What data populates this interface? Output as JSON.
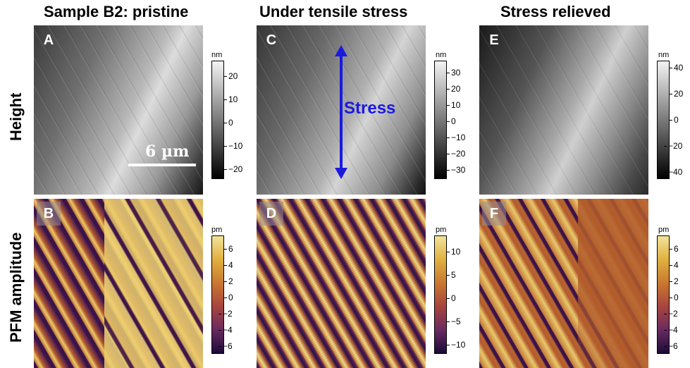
{
  "columns": [
    "Sample B2: pristine",
    "Under tensile stress",
    "Stress relieved"
  ],
  "rows": [
    "Height",
    "PFM amplitude"
  ],
  "panels": [
    {
      "letter": "A",
      "kind": "height",
      "unit": "nm",
      "ticks": [
        "20",
        "10",
        "0",
        "−10",
        "−20"
      ]
    },
    {
      "letter": "B",
      "kind": "pfm",
      "unit": "pm",
      "ticks": [
        "6",
        "4",
        "2",
        "0",
        "−2",
        "−4",
        "−6"
      ]
    },
    {
      "letter": "C",
      "kind": "height",
      "unit": "nm",
      "ticks": [
        "30",
        "20",
        "10",
        "0",
        "−10",
        "−20",
        "−30"
      ]
    },
    {
      "letter": "D",
      "kind": "pfm",
      "unit": "pm",
      "ticks": [
        "10",
        "5",
        "0",
        "−5",
        "−10"
      ]
    },
    {
      "letter": "E",
      "kind": "height",
      "unit": "nm",
      "ticks": [
        "40",
        "20",
        "0",
        "−20",
        "−40"
      ]
    },
    {
      "letter": "F",
      "kind": "pfm",
      "unit": "pm",
      "ticks": [
        "6",
        "4",
        "2",
        "0",
        "−2",
        "−4",
        "−6"
      ]
    }
  ],
  "annotations": {
    "stress_label": "Stress",
    "scalebar_label": "6 µm"
  },
  "colors": {
    "stress": "#1a1adf",
    "pfm_low": "#1c0a3a",
    "pfm_mid": "#b8562a",
    "pfm_high": "#f2e49a"
  }
}
